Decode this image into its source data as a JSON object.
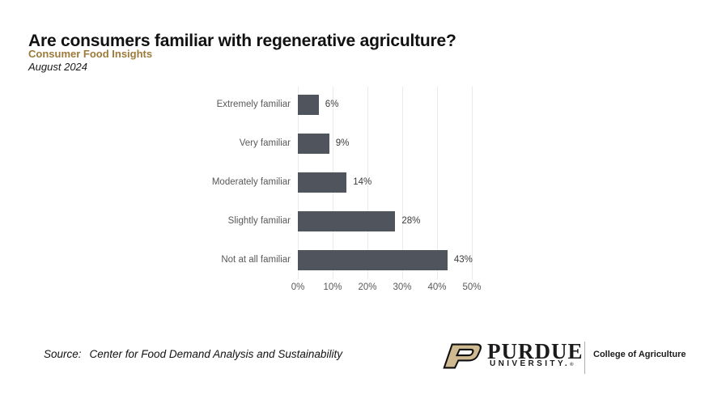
{
  "header": {
    "title": "Are consumers familiar with regenerative agriculture?",
    "subtitle": "Consumer Food Insights",
    "date": "August 2024"
  },
  "chart_data": {
    "type": "bar",
    "orientation": "horizontal",
    "title": "Are consumers familiar with regenerative agriculture?",
    "categories": [
      "Extremely familiar",
      "Very familiar",
      "Moderately familiar",
      "Slightly familiar",
      "Not at all familiar"
    ],
    "values": [
      6,
      9,
      14,
      28,
      43
    ],
    "value_labels": [
      "6%",
      "9%",
      "14%",
      "28%",
      "43%"
    ],
    "x_ticks": [
      "0%",
      "10%",
      "20%",
      "30%",
      "40%",
      "50%"
    ],
    "xlim": [
      0,
      50
    ],
    "grid": "vertical-gridlines-on",
    "bar_color": "#50555d",
    "gridline_color": "#eaeaea",
    "label_color": "#595959",
    "value_label_color": "#3c3c3c"
  },
  "footer": {
    "source_label": "Source:",
    "source_text": "Center for Food Demand Analysis and Sustainability",
    "logo": {
      "university_name": "PURDUE",
      "university_sub": "UNIVERSITY.",
      "registered_mark": "®",
      "college": "College of Agriculture",
      "gold": "#cfb991"
    }
  },
  "colors": {
    "accent_gold": "#9c7a3a",
    "title_color": "#111111",
    "background": "#ffffff"
  }
}
